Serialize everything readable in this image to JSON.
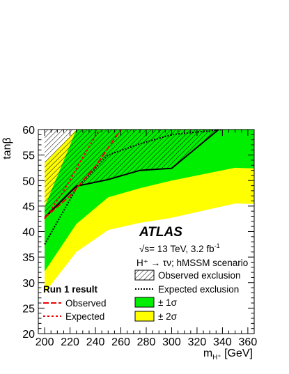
{
  "chart_data": {
    "type": "area",
    "xlabel": "m",
    "xlabel_sub": "H⁺",
    "xlabel_unit": " [GeV]",
    "ylabel": "tanβ",
    "xlim": [
      195,
      365
    ],
    "ylim": [
      20,
      60
    ],
    "x_ticks": [
      200,
      220,
      240,
      260,
      280,
      300,
      320,
      340,
      360
    ],
    "y_ticks": [
      20,
      25,
      30,
      35,
      40,
      45,
      50,
      55,
      60
    ],
    "annotations": {
      "experiment": "ATLAS",
      "energy_pre": "√s= 13 TeV, 3.2 fb",
      "energy_sup": "-1",
      "process": "H⁺ → τν; hMSSM scenario"
    },
    "legend": {
      "observed_exclusion": "Observed exclusion",
      "expected_exclusion": "Expected exclusion",
      "one_sigma": "± 1σ",
      "two_sigma": "± 2σ",
      "run1_title": "Run 1 result",
      "run1_observed": "Observed",
      "run1_expected": "Expected"
    },
    "colors": {
      "one_sigma": "#00ee00",
      "two_sigma": "#ffff00",
      "run1": "#ee0000",
      "lines": "#000000"
    },
    "series": [
      {
        "name": "Observed exclusion",
        "x": [
          200,
          225,
          250,
          275,
          300,
          337
        ],
        "y": [
          42.7,
          48.9,
          50.2,
          52.0,
          52.4,
          60
        ]
      },
      {
        "name": "Expected exclusion",
        "x": [
          200,
          225,
          250,
          275,
          300,
          340
        ],
        "y": [
          37.5,
          48.5,
          55.0,
          57.2,
          59.0,
          60
        ]
      },
      {
        "name": "± 1σ",
        "x": [
          200,
          225,
          250,
          275,
          300,
          350,
          365
        ],
        "upper": [
          44.8,
          60,
          60,
          60,
          60,
          60,
          60
        ],
        "lower": [
          32.2,
          41.5,
          46.7,
          48.5,
          50.0,
          52.5,
          52.4
        ]
      },
      {
        "name": "± 2σ",
        "x": [
          200,
          225,
          250,
          275,
          300,
          350,
          365
        ],
        "upper": [
          53.5,
          60,
          60,
          60,
          60,
          60,
          60
        ],
        "lower": [
          28.0,
          36.0,
          40.3,
          41.7,
          42.7,
          45.5,
          45.4
        ]
      },
      {
        "name": "Observed",
        "x": [
          200,
          220,
          240,
          260
        ],
        "y": [
          42.7,
          47.0,
          52.8,
          60
        ]
      },
      {
        "name": "Expected",
        "x": [
          200,
          215,
          230,
          243
        ],
        "y": [
          42.5,
          48.0,
          54.5,
          60
        ]
      }
    ]
  }
}
